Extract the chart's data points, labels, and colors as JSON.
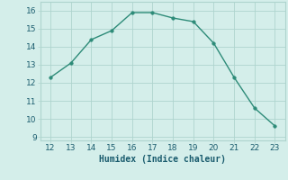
{
  "x": [
    12,
    13,
    14,
    15,
    16,
    17,
    18,
    19,
    20,
    21,
    22,
    23
  ],
  "y": [
    12.3,
    13.1,
    14.4,
    14.9,
    15.9,
    15.9,
    15.6,
    15.4,
    14.2,
    12.3,
    10.6,
    9.6
  ],
  "xlabel": "Humidex (Indice chaleur)",
  "xlim": [
    11.5,
    23.5
  ],
  "ylim": [
    8.8,
    16.5
  ],
  "yticks": [
    9,
    10,
    11,
    12,
    13,
    14,
    15,
    16
  ],
  "xticks": [
    12,
    13,
    14,
    15,
    16,
    17,
    18,
    19,
    20,
    21,
    22,
    23
  ],
  "line_color": "#2d8b78",
  "marker_color": "#2d8b78",
  "bg_color": "#d4eeea",
  "grid_color": "#aed4ce",
  "axis_label_color": "#1a5c6e",
  "tick_color": "#1a5c6e"
}
